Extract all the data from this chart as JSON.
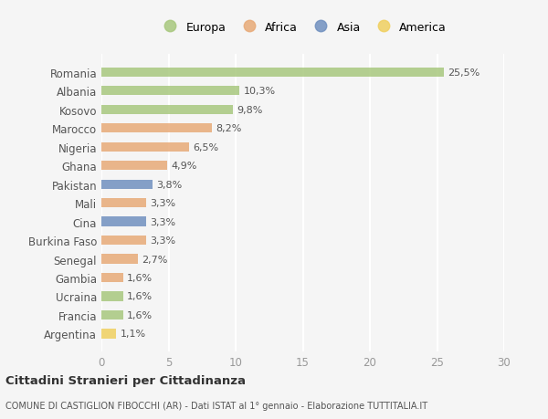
{
  "countries": [
    "Romania",
    "Albania",
    "Kosovo",
    "Marocco",
    "Nigeria",
    "Ghana",
    "Pakistan",
    "Mali",
    "Cina",
    "Burkina Faso",
    "Senegal",
    "Gambia",
    "Ucraina",
    "Francia",
    "Argentina"
  ],
  "values": [
    25.5,
    10.3,
    9.8,
    8.2,
    6.5,
    4.9,
    3.8,
    3.3,
    3.3,
    3.3,
    2.7,
    1.6,
    1.6,
    1.6,
    1.1
  ],
  "labels": [
    "25,5%",
    "10,3%",
    "9,8%",
    "8,2%",
    "6,5%",
    "4,9%",
    "3,8%",
    "3,3%",
    "3,3%",
    "3,3%",
    "2,7%",
    "1,6%",
    "1,6%",
    "1,6%",
    "1,1%"
  ],
  "continents": [
    "Europa",
    "Europa",
    "Europa",
    "Africa",
    "Africa",
    "Africa",
    "Asia",
    "Africa",
    "Asia",
    "Africa",
    "Africa",
    "Africa",
    "Europa",
    "Europa",
    "America"
  ],
  "colors": {
    "Europa": "#a8c87e",
    "Africa": "#e8aa78",
    "Asia": "#7090bf",
    "America": "#f0d060"
  },
  "xlim": [
    0,
    30
  ],
  "xticks": [
    0,
    5,
    10,
    15,
    20,
    25,
    30
  ],
  "title": "Cittadini Stranieri per Cittadinanza",
  "subtitle": "COMUNE DI CASTIGLION FIBOCCHI (AR) - Dati ISTAT al 1° gennaio - Elaborazione TUTTITALIA.IT",
  "bg_color": "#f5f5f5",
  "grid_color": "#ffffff",
  "bar_height": 0.5,
  "legend_entries": [
    "Europa",
    "Africa",
    "Asia",
    "America"
  ]
}
